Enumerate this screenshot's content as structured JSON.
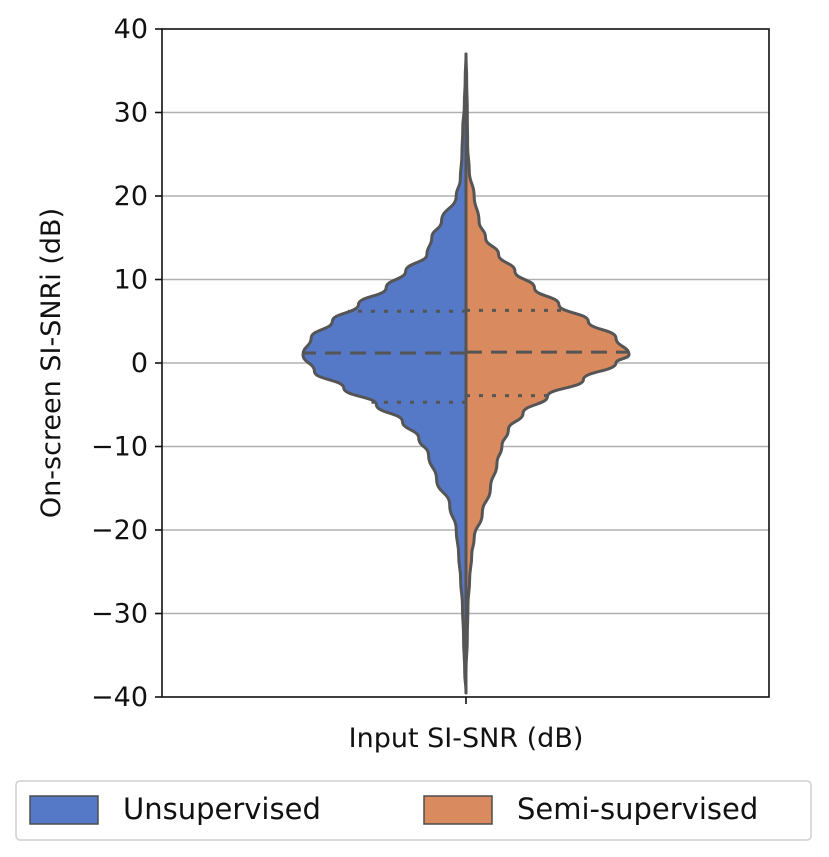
{
  "chart_data": {
    "type": "violin",
    "title": "",
    "xlabel": "Input SI-SNR (dB)",
    "ylabel": "On-screen SI-SNRi (dB)",
    "ylim": [
      -40,
      40
    ],
    "yticks": [
      40,
      30,
      20,
      10,
      0,
      -10,
      -20,
      -30,
      -40
    ],
    "ytick_labels": [
      "40",
      "30",
      "20",
      "10",
      "0",
      "−10",
      "−20",
      "−30",
      "−40"
    ],
    "grid": "horizontal",
    "legend_placement": "bottom",
    "split": true,
    "series": [
      {
        "name": "Unsupervised",
        "side": "left",
        "color": "#5579c6",
        "quartiles": {
          "q1": -4.7,
          "median": 1.2,
          "q3": 6.2
        },
        "range": [
          -39.5,
          37
        ],
        "density": [
          [
            -39.5,
            0.0
          ],
          [
            -37,
            0.008
          ],
          [
            -33,
            0.015
          ],
          [
            -29,
            0.022
          ],
          [
            -26,
            0.033
          ],
          [
            -23,
            0.045
          ],
          [
            -20,
            0.06
          ],
          [
            -17,
            0.1
          ],
          [
            -14,
            0.18
          ],
          [
            -11,
            0.23
          ],
          [
            -9,
            0.29
          ],
          [
            -7,
            0.39
          ],
          [
            -5,
            0.55
          ],
          [
            -3,
            0.75
          ],
          [
            -1,
            0.93
          ],
          [
            1,
            1.0
          ],
          [
            3,
            0.95
          ],
          [
            5,
            0.82
          ],
          [
            7,
            0.66
          ],
          [
            9,
            0.49
          ],
          [
            11,
            0.37
          ],
          [
            13,
            0.24
          ],
          [
            15,
            0.21
          ],
          [
            17,
            0.15
          ],
          [
            20,
            0.06
          ],
          [
            22,
            0.035
          ],
          [
            25,
            0.025
          ],
          [
            28,
            0.02
          ],
          [
            31,
            0.01
          ],
          [
            34,
            0.005
          ],
          [
            37,
            0.0
          ]
        ]
      },
      {
        "name": "Semi-supervised",
        "side": "right",
        "color": "#d98a5e",
        "quartiles": {
          "q1": -3.9,
          "median": 1.3,
          "q3": 6.3
        },
        "range": [
          -39.5,
          37
        ],
        "density": [
          [
            -39.5,
            0.0
          ],
          [
            -37,
            0.0
          ],
          [
            -33,
            0.008
          ],
          [
            -29,
            0.012
          ],
          [
            -26,
            0.022
          ],
          [
            -23,
            0.035
          ],
          [
            -21,
            0.05
          ],
          [
            -18,
            0.1
          ],
          [
            -15,
            0.15
          ],
          [
            -12,
            0.19
          ],
          [
            -10,
            0.22
          ],
          [
            -8,
            0.26
          ],
          [
            -6,
            0.35
          ],
          [
            -4,
            0.5
          ],
          [
            -2,
            0.72
          ],
          [
            0,
            0.92
          ],
          [
            1,
            1.0
          ],
          [
            3,
            0.92
          ],
          [
            5,
            0.75
          ],
          [
            7,
            0.57
          ],
          [
            9,
            0.42
          ],
          [
            11,
            0.3
          ],
          [
            13,
            0.2
          ],
          [
            15,
            0.12
          ],
          [
            17,
            0.08
          ],
          [
            20,
            0.05
          ],
          [
            23,
            0.02
          ],
          [
            26,
            0.01
          ],
          [
            30,
            0.008
          ],
          [
            34,
            0.004
          ],
          [
            37,
            0.0
          ]
        ]
      }
    ]
  }
}
